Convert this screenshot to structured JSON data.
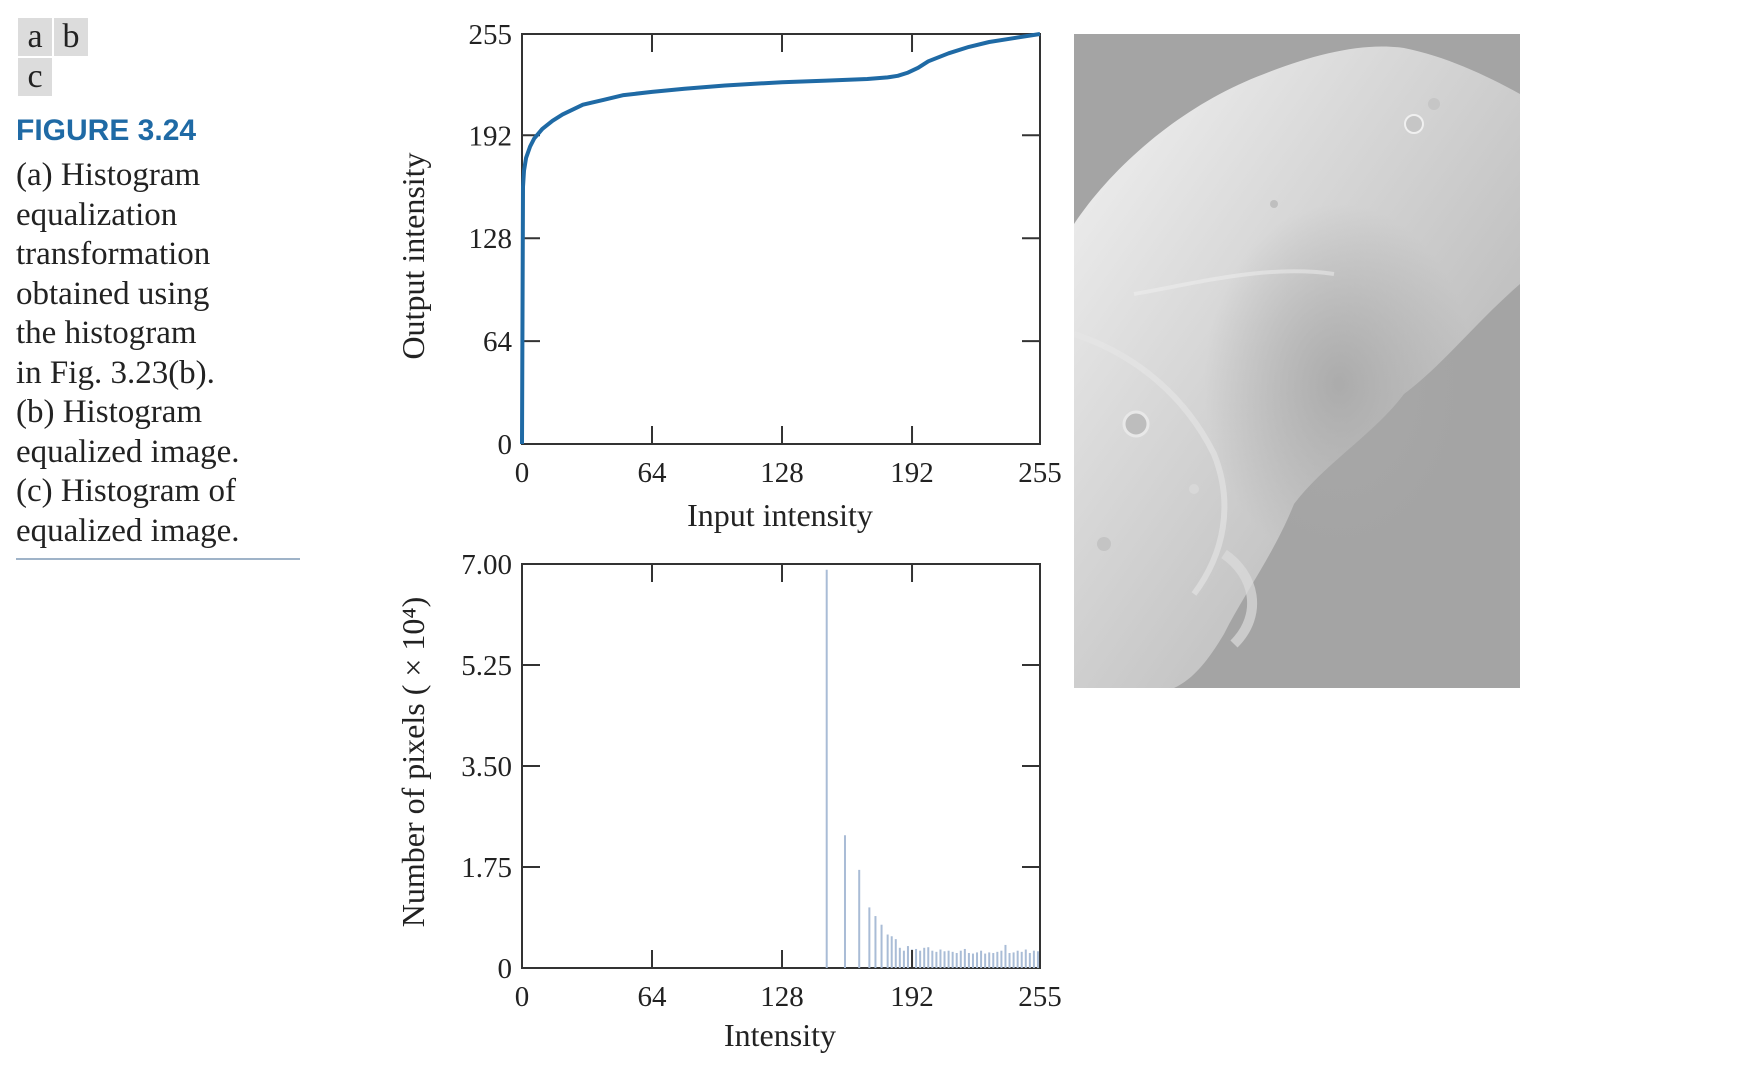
{
  "panel_labels": {
    "a": "a",
    "b": "b",
    "c": "c"
  },
  "figure": {
    "title": "FIGURE 3.24",
    "caption_lines": [
      "(a) Histogram",
      "equalization",
      "transformation",
      "obtained using",
      "the histogram",
      "in Fig. 3.23(b).",
      "(b) Histogram",
      "equalized image.",
      "(c) Histogram of",
      "equalized image."
    ],
    "title_color": "#1f6aa5"
  },
  "image_b": {
    "icon": "mars-moon-photo",
    "background_color": "#a4a4a4"
  },
  "chart_data": [
    {
      "id": "a",
      "type": "line",
      "xlabel": "Input intensity",
      "ylabel": "Output intensity",
      "xlim": [
        0,
        255
      ],
      "ylim": [
        0,
        255
      ],
      "xticks": [
        0,
        64,
        128,
        192,
        255
      ],
      "yticks": [
        0,
        64,
        128,
        192,
        255
      ],
      "xtick_labels": [
        "0",
        "64",
        "128",
        "192",
        "255"
      ],
      "ytick_labels": [
        "0",
        "64",
        "128",
        "192",
        "255"
      ],
      "grid": false,
      "line_color": "#1f6aa5",
      "x": [
        0,
        0.5,
        1,
        2,
        4,
        6,
        10,
        15,
        20,
        30,
        40,
        50,
        64,
        80,
        100,
        128,
        150,
        170,
        180,
        185,
        190,
        195,
        200,
        210,
        220,
        230,
        240,
        255
      ],
      "y": [
        0,
        160,
        170,
        178,
        185,
        190,
        196,
        201,
        205,
        211,
        214,
        217,
        219,
        221,
        223,
        225,
        226,
        227,
        228,
        229,
        231,
        234,
        238,
        243,
        247,
        250,
        252,
        255
      ]
    },
    {
      "id": "c",
      "type": "bar",
      "xlabel": "Intensity",
      "ylabel": "Number of pixels ( × 10⁴)",
      "xlim": [
        0,
        255
      ],
      "ylim": [
        0,
        7.0
      ],
      "xticks": [
        0,
        64,
        128,
        192,
        255
      ],
      "yticks": [
        0,
        1.75,
        3.5,
        5.25,
        7.0
      ],
      "xtick_labels": [
        "0",
        "64",
        "128",
        "192",
        "255"
      ],
      "ytick_labels": [
        "0",
        "1.75",
        "3.50",
        "5.25",
        "7.00"
      ],
      "grid": false,
      "bar_color": "#a9bcd6",
      "x": [
        150,
        159,
        166,
        171,
        174,
        177,
        180,
        182,
        184,
        186,
        188,
        190,
        192,
        194,
        196,
        198,
        200,
        202,
        204,
        206,
        208,
        210,
        212,
        214,
        216,
        218,
        220,
        222,
        224,
        226,
        228,
        230,
        232,
        234,
        236,
        238,
        240,
        242,
        244,
        246,
        248,
        250,
        252,
        254
      ],
      "values": [
        6.9,
        2.3,
        1.7,
        1.05,
        0.9,
        0.75,
        0.58,
        0.55,
        0.5,
        0.35,
        0.3,
        0.38,
        0.32,
        0.33,
        0.3,
        0.35,
        0.36,
        0.3,
        0.28,
        0.32,
        0.29,
        0.3,
        0.28,
        0.26,
        0.3,
        0.33,
        0.26,
        0.25,
        0.27,
        0.3,
        0.25,
        0.27,
        0.26,
        0.28,
        0.3,
        0.4,
        0.26,
        0.27,
        0.3,
        0.28,
        0.32,
        0.26,
        0.3,
        0.29
      ]
    }
  ]
}
